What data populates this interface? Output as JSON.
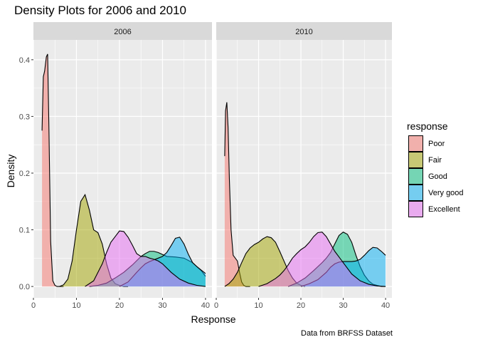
{
  "chart_data": {
    "type": "area",
    "title": "Density Plots for 2006 and 2010",
    "xlabel": "Response",
    "ylabel": "Density",
    "caption": "Data from BRFSS Dataset",
    "xlim": [
      0,
      41.5
    ],
    "ylim": [
      -0.02,
      0.435
    ],
    "x_ticks": [
      0,
      10,
      20,
      30,
      40
    ],
    "x_tick_labels": [
      "0",
      "10",
      "20",
      "30",
      "40"
    ],
    "y_ticks": [
      0.0,
      0.1,
      0.2,
      0.3,
      0.4
    ],
    "y_tick_labels": [
      "0.0",
      "0.1",
      "0.2",
      "0.3",
      "0.4"
    ],
    "grid": true,
    "fill_opacity": 0.5,
    "legend": {
      "title": "response",
      "position": "right",
      "entries": [
        {
          "name": "Poor",
          "color": "#F8766D"
        },
        {
          "name": "Fair",
          "color": "#A3A500"
        },
        {
          "name": "Good",
          "color": "#00BF7D"
        },
        {
          "name": "Very good",
          "color": "#00B0F6"
        },
        {
          "name": "Excellent",
          "color": "#E76BF3"
        }
      ]
    },
    "panels": [
      {
        "label": "2006",
        "series": [
          {
            "name": "Poor",
            "color": "#F8766D",
            "x": [
              2.0,
              2.3,
              2.6,
              3.0,
              3.3,
              3.6,
              4.0,
              4.5,
              5.0,
              5.5,
              6.0,
              7.0
            ],
            "y": [
              0.275,
              0.37,
              0.38,
              0.405,
              0.41,
              0.28,
              0.08,
              0.01,
              0.002,
              0.0,
              0.0,
              0.0
            ]
          },
          {
            "name": "Fair",
            "color": "#A3A500",
            "x": [
              6.0,
              7.0,
              8.0,
              9.0,
              10.0,
              11.0,
              12.0,
              13.0,
              14.0,
              15.0,
              16.0,
              17.0,
              18.0,
              19.0,
              20.0,
              21.0,
              22.0
            ],
            "y": [
              0.0,
              0.003,
              0.013,
              0.045,
              0.1,
              0.15,
              0.162,
              0.135,
              0.1,
              0.095,
              0.075,
              0.04,
              0.015,
              0.005,
              0.002,
              0.0,
              0.0
            ]
          },
          {
            "name": "Good",
            "color": "#00BF7D",
            "x": [
              13.0,
              15.0,
              17.0,
              19.0,
              21.0,
              23.0,
              25.0,
              26.0,
              27.0,
              28.0,
              29.0,
              31.0,
              33.0,
              35.0,
              37.0,
              39.0,
              40.0
            ],
            "y": [
              0.0,
              0.002,
              0.006,
              0.015,
              0.025,
              0.038,
              0.053,
              0.058,
              0.062,
              0.062,
              0.06,
              0.053,
              0.052,
              0.05,
              0.042,
              0.028,
              0.018
            ]
          },
          {
            "name": "Very good",
            "color": "#00B0F6",
            "x": [
              20.0,
              22.0,
              24.0,
              25.0,
              26.0,
              27.0,
              28.0,
              29.0,
              30.0,
              31.0,
              32.0,
              33.0,
              34.0,
              35.0,
              36.0,
              37.0,
              38.0,
              39.0,
              40.0
            ],
            "y": [
              0.0,
              0.008,
              0.025,
              0.033,
              0.04,
              0.044,
              0.047,
              0.05,
              0.053,
              0.06,
              0.072,
              0.085,
              0.087,
              0.075,
              0.057,
              0.042,
              0.035,
              0.029,
              0.023
            ]
          },
          {
            "name": "Excellent",
            "color": "#E76BF3",
            "x": [
              12.0,
              14.0,
              16.0,
              17.0,
              18.0,
              19.0,
              20.0,
              21.0,
              22.0,
              23.0,
              24.0,
              25.0,
              26.0,
              27.0,
              28.0,
              29.0,
              30.0,
              32.0,
              34.0,
              36.0,
              38.0,
              40.0
            ],
            "y": [
              0.0,
              0.01,
              0.04,
              0.06,
              0.078,
              0.088,
              0.098,
              0.097,
              0.087,
              0.073,
              0.058,
              0.053,
              0.053,
              0.05,
              0.048,
              0.045,
              0.04,
              0.025,
              0.013,
              0.006,
              0.002,
              0.0
            ]
          }
        ]
      },
      {
        "label": "2010",
        "series": [
          {
            "name": "Poor",
            "color": "#F8766D",
            "x": [
              2.0,
              2.2,
              2.5,
              2.8,
              3.1,
              3.5,
              4.0,
              4.5,
              5.0,
              5.5,
              6.0,
              6.5,
              7.0,
              8.0
            ],
            "y": [
              0.23,
              0.31,
              0.325,
              0.28,
              0.19,
              0.1,
              0.055,
              0.05,
              0.045,
              0.025,
              0.008,
              0.002,
              0.0,
              0.0
            ]
          },
          {
            "name": "Fair",
            "color": "#A3A500",
            "x": [
              2.0,
              3.0,
              4.0,
              5.0,
              6.0,
              7.0,
              8.0,
              9.0,
              10.0,
              11.0,
              12.0,
              13.0,
              14.0,
              15.0,
              16.0,
              17.0,
              18.0,
              19.0,
              20.0,
              21.0
            ],
            "y": [
              0.0,
              0.005,
              0.013,
              0.025,
              0.042,
              0.058,
              0.068,
              0.074,
              0.078,
              0.084,
              0.088,
              0.086,
              0.078,
              0.062,
              0.045,
              0.028,
              0.015,
              0.006,
              0.002,
              0.0
            ]
          },
          {
            "name": "Good",
            "color": "#00BF7D",
            "x": [
              17.0,
              19.0,
              21.0,
              23.0,
              25.0,
              26.0,
              27.0,
              28.0,
              29.0,
              30.0,
              31.0,
              32.0,
              33.0,
              34.0,
              35.0,
              36.0,
              37.0,
              38.0,
              39.0,
              40.0
            ],
            "y": [
              0.0,
              0.006,
              0.015,
              0.028,
              0.042,
              0.05,
              0.06,
              0.075,
              0.09,
              0.096,
              0.092,
              0.078,
              0.055,
              0.035,
              0.02,
              0.01,
              0.004,
              0.002,
              0.0,
              0.0
            ]
          },
          {
            "name": "Very good",
            "color": "#00B0F6",
            "x": [
              20.0,
              22.0,
              24.0,
              26.0,
              27.0,
              28.0,
              29.0,
              30.0,
              31.0,
              32.0,
              33.0,
              34.0,
              35.0,
              36.0,
              37.0,
              38.0,
              39.0,
              40.0
            ],
            "y": [
              0.0,
              0.005,
              0.012,
              0.025,
              0.034,
              0.04,
              0.043,
              0.044,
              0.044,
              0.044,
              0.045,
              0.048,
              0.055,
              0.063,
              0.069,
              0.068,
              0.062,
              0.055
            ]
          },
          {
            "name": "Excellent",
            "color": "#E76BF3",
            "x": [
              10.0,
              12.0,
              14.0,
              15.0,
              16.0,
              17.0,
              18.0,
              19.0,
              20.0,
              21.0,
              22.0,
              23.0,
              24.0,
              25.0,
              26.0,
              27.0,
              28.0,
              29.0,
              30.0,
              32.0,
              34.0,
              36.0,
              38.0,
              40.0
            ],
            "y": [
              0.0,
              0.005,
              0.014,
              0.02,
              0.028,
              0.038,
              0.05,
              0.058,
              0.065,
              0.07,
              0.078,
              0.088,
              0.095,
              0.096,
              0.088,
              0.075,
              0.062,
              0.052,
              0.042,
              0.022,
              0.01,
              0.004,
              0.001,
              0.0
            ]
          }
        ]
      }
    ]
  }
}
